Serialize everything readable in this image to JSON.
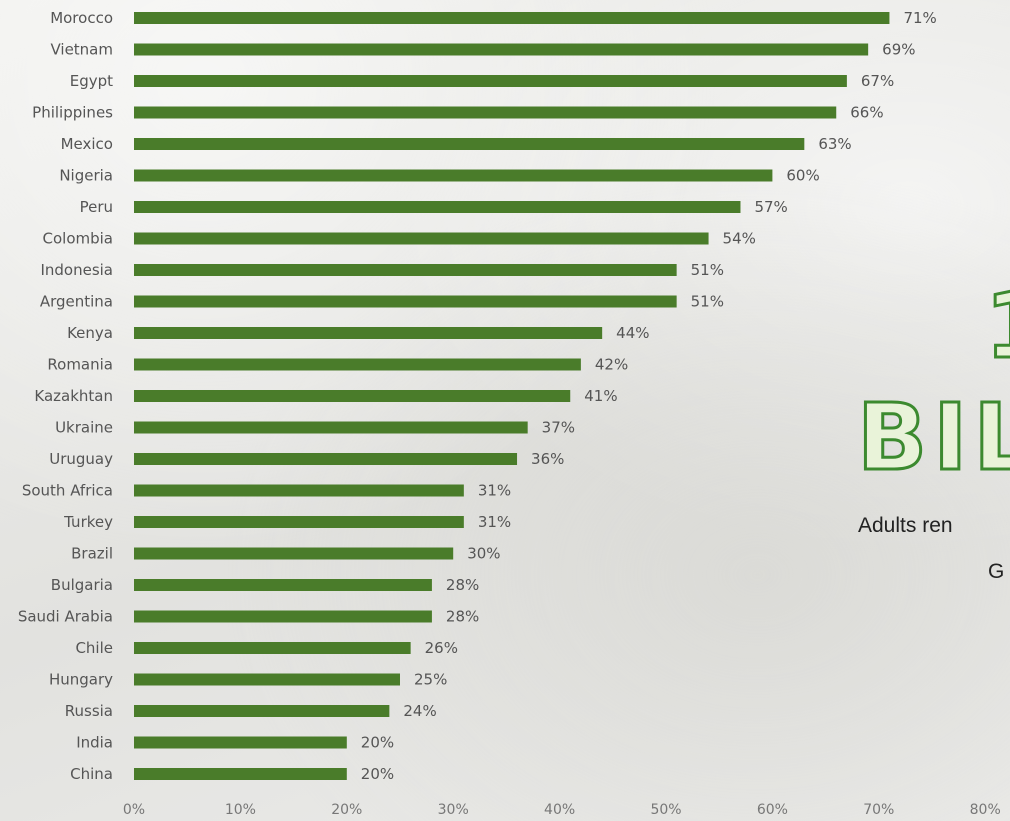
{
  "chart_data": {
    "type": "bar",
    "orientation": "horizontal",
    "categories": [
      "Morocco",
      "Vietnam",
      "Egypt",
      "Philippines",
      "Mexico",
      "Nigeria",
      "Peru",
      "Colombia",
      "Indonesia",
      "Argentina",
      "Kenya",
      "Romania",
      "Kazakhtan",
      "Ukraine",
      "Uruguay",
      "South Africa",
      "Turkey",
      "Brazil",
      "Bulgaria",
      "Saudi Arabia",
      "Chile",
      "Hungary",
      "Russia",
      "India",
      "China"
    ],
    "values": [
      71,
      69,
      67,
      66,
      63,
      60,
      57,
      54,
      51,
      51,
      44,
      42,
      41,
      37,
      36,
      31,
      31,
      30,
      28,
      28,
      26,
      25,
      24,
      20,
      20
    ],
    "value_labels": [
      "71%",
      "69%",
      "67%",
      "66%",
      "63%",
      "60%",
      "57%",
      "54%",
      "51%",
      "51%",
      "44%",
      "42%",
      "41%",
      "37%",
      "36%",
      "31%",
      "31%",
      "30%",
      "28%",
      "28%",
      "26%",
      "25%",
      "24%",
      "20%",
      "20%"
    ],
    "x_ticks": [
      "0%",
      "10%",
      "20%",
      "30%",
      "40%",
      "50%",
      "60%",
      "70%",
      "80%"
    ],
    "xlim": [
      0,
      80
    ],
    "title": "",
    "xlabel": "",
    "ylabel": "",
    "grid": false,
    "bar_color": "#4a7c2a"
  },
  "overlay": {
    "big_number": "1",
    "big_word": "BIL",
    "caption_line_1": "Adults ren",
    "caption_line_2": "G"
  },
  "colors": {
    "accent": "#3c8a2f",
    "bar": "#4a7c2a",
    "label": "#555555"
  }
}
